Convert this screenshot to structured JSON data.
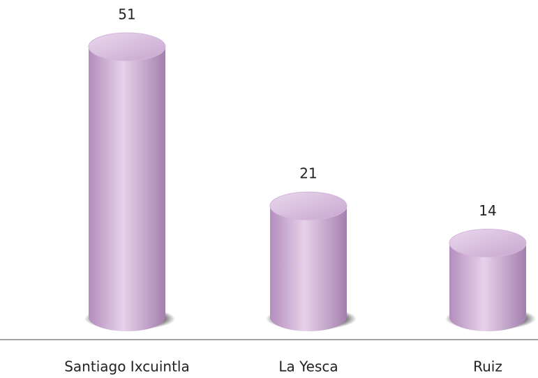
{
  "chart_data": {
    "type": "bar",
    "categories": [
      "Santiago Ixcuintla",
      "La Yesca",
      "Ruiz"
    ],
    "values": [
      51,
      21,
      14
    ],
    "color": "#d3b6da"
  }
}
